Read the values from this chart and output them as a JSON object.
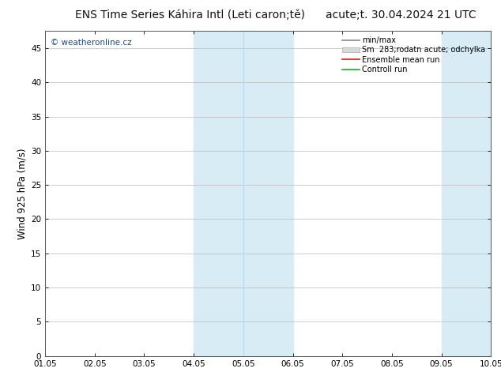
{
  "title_left": "ENS Time Series Káhira Intl (Leti caron;tě)",
  "title_right": "acute;t. 30.04.2024 21 UTC",
  "ylabel": "Wind 925 hPa (m/s)",
  "watermark": "© weatheronline.cz",
  "ylim_min": 0,
  "ylim_max": 47.5,
  "yticks": [
    0,
    5,
    10,
    15,
    20,
    25,
    30,
    35,
    40,
    45
  ],
  "xtick_labels": [
    "01.05",
    "02.05",
    "03.05",
    "04.05",
    "05.05",
    "06.05",
    "07.05",
    "08.05",
    "09.05",
    "10.05"
  ],
  "shade_regions": [
    {
      "xstart": 3,
      "xend": 4,
      "color": "#ddeef8"
    },
    {
      "xstart": 4,
      "xend": 5,
      "color": "#ddeef8"
    },
    {
      "xstart": 8,
      "xend": 9,
      "color": "#ddeef8"
    }
  ],
  "shade_dividers": [
    4,
    9
  ],
  "background_color": "#ffffff",
  "plot_bg_color": "#ffffff",
  "grid_color": "#bbbbbb",
  "title_fontsize": 10,
  "tick_fontsize": 7.5,
  "ylabel_fontsize": 8.5,
  "watermark_fontsize": 7.5
}
